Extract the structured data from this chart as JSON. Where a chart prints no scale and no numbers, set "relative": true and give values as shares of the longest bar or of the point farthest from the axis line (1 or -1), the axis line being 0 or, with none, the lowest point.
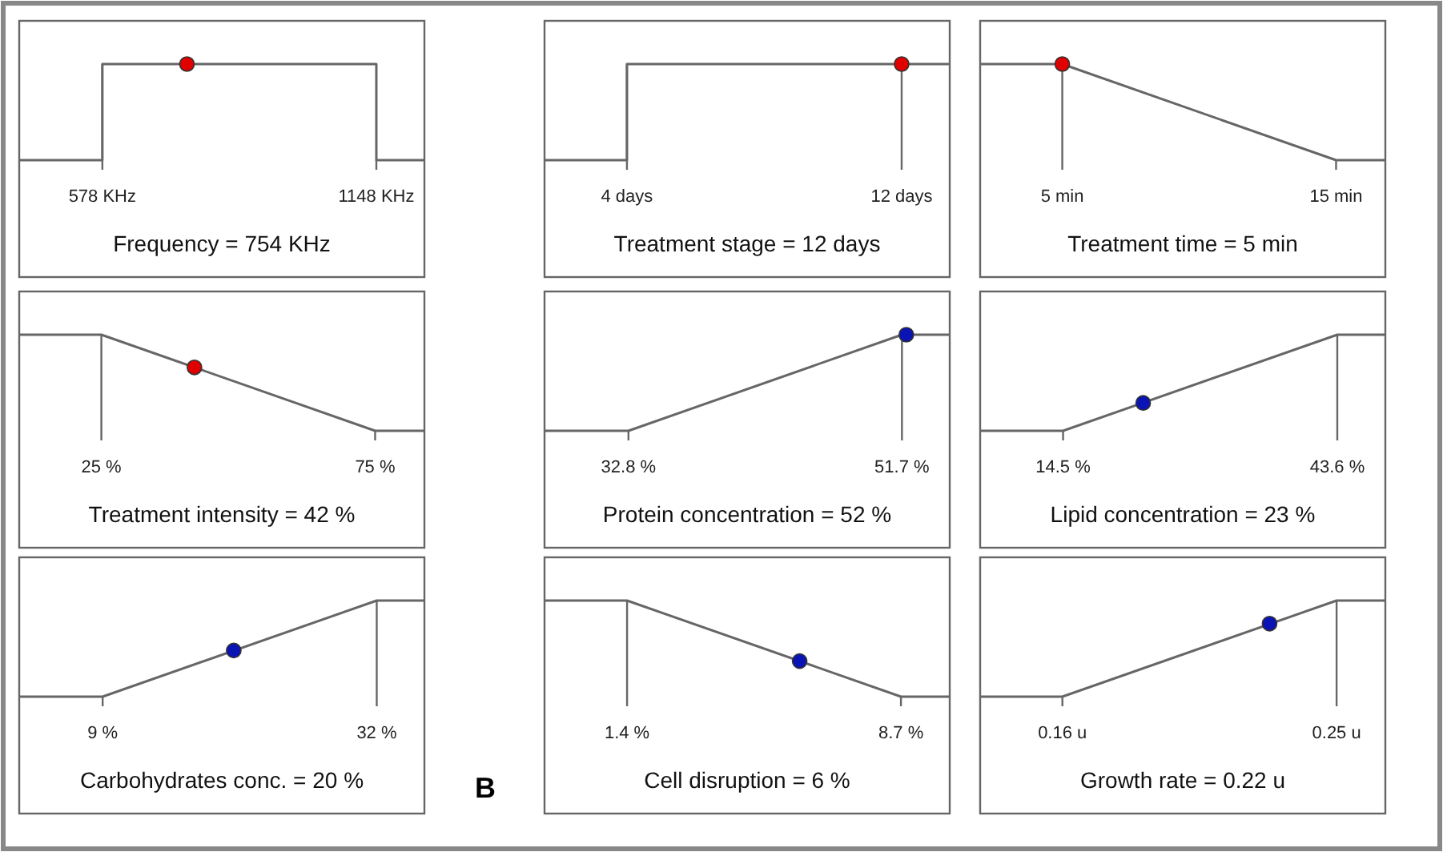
{
  "chart_data": [
    {
      "type": "line",
      "relative": true,
      "tick_labels": "x",
      "xlabel": "Frequency = 754 KHz",
      "xlim": [
        405,
        1248
      ],
      "xticks": [
        {
          "value": 578,
          "label": "578 KHz"
        },
        {
          "value": 1148,
          "label": "1148 KHz"
        }
      ],
      "series": [
        {
          "marker": "none",
          "color": "#666666",
          "x": [
            405,
            578,
            578,
            1148,
            1148,
            1248
          ],
          "values": [
            0,
            0,
            1,
            1,
            0,
            0
          ]
        },
        {
          "type": "scatter",
          "marker": "circle",
          "color": "#e00000",
          "x": [
            754
          ],
          "values": [
            1
          ]
        }
      ]
    },
    {
      "type": "line",
      "relative": true,
      "tick_labels": "x",
      "xlabel": "Treatment stage = 12 days",
      "xlim": [
        1.6,
        13.4
      ],
      "xticks": [
        {
          "value": 4,
          "label": "4 days"
        },
        {
          "value": 12,
          "label": "12 days"
        }
      ],
      "series": [
        {
          "marker": "none",
          "color": "#666666",
          "x": [
            1.6,
            4,
            4,
            12,
            13.4
          ],
          "values": [
            0,
            0,
            1,
            1,
            1
          ]
        },
        {
          "type": "scatter",
          "marker": "circle",
          "color": "#e00000",
          "x": [
            12
          ],
          "values": [
            1
          ]
        }
      ]
    },
    {
      "type": "line",
      "relative": true,
      "tick_labels": "x",
      "xlabel": "Treatment time = 5 min",
      "xlim": [
        2,
        16.8
      ],
      "xticks": [
        {
          "value": 5,
          "label": "5 min"
        },
        {
          "value": 15,
          "label": "15 min"
        }
      ],
      "series": [
        {
          "marker": "none",
          "color": "#666666",
          "x": [
            2,
            5,
            15,
            16.8
          ],
          "values": [
            1,
            1,
            0,
            0
          ]
        },
        {
          "type": "scatter",
          "marker": "circle",
          "color": "#e00000",
          "x": [
            5
          ],
          "values": [
            1
          ]
        }
      ]
    },
    {
      "type": "line",
      "relative": true,
      "tick_labels": "x",
      "xlabel": "Treatment intensity = 42 %",
      "xlim": [
        10,
        84
      ],
      "xticks": [
        {
          "value": 25,
          "label": "25 %"
        },
        {
          "value": 75,
          "label": "75 %"
        }
      ],
      "series": [
        {
          "marker": "none",
          "color": "#666666",
          "x": [
            10,
            25,
            75,
            84
          ],
          "values": [
            1,
            1,
            0,
            0
          ]
        },
        {
          "type": "scatter",
          "marker": "circle",
          "color": "#e00000",
          "x": [
            42
          ],
          "values": [
            0.66
          ]
        }
      ]
    },
    {
      "type": "line",
      "relative": true,
      "tick_labels": "x",
      "xlabel": "Protein concentration = 52 %",
      "xlim": [
        27,
        55
      ],
      "xticks": [
        {
          "value": 32.8,
          "label": "32.8 %"
        },
        {
          "value": 51.7,
          "label": "51.7 %"
        }
      ],
      "series": [
        {
          "marker": "none",
          "color": "#666666",
          "x": [
            27,
            32.8,
            51.7,
            55
          ],
          "values": [
            0,
            0,
            1,
            1
          ]
        },
        {
          "type": "scatter",
          "marker": "circle",
          "color": "#0a14b4",
          "x": [
            52
          ],
          "values": [
            1
          ]
        }
      ]
    },
    {
      "type": "line",
      "relative": true,
      "tick_labels": "x",
      "xlabel": "Lipid concentration = 23 %",
      "xlim": [
        5.7,
        48.7
      ],
      "xticks": [
        {
          "value": 14.5,
          "label": "14.5 %"
        },
        {
          "value": 43.6,
          "label": "43.6 %"
        }
      ],
      "series": [
        {
          "marker": "none",
          "color": "#666666",
          "x": [
            5.7,
            14.5,
            43.6,
            48.7
          ],
          "values": [
            0,
            0,
            1,
            1
          ]
        },
        {
          "type": "scatter",
          "marker": "circle",
          "color": "#0a14b4",
          "x": [
            23
          ],
          "values": [
            0.29
          ]
        }
      ]
    },
    {
      "type": "line",
      "relative": true,
      "tick_labels": "x",
      "xlabel": "Carbohydrates conc. = 20 %",
      "annotations": [
        "B"
      ],
      "xlim": [
        2,
        36
      ],
      "xticks": [
        {
          "value": 9,
          "label": "9 %"
        },
        {
          "value": 32,
          "label": "32 %"
        }
      ],
      "series": [
        {
          "marker": "none",
          "color": "#666666",
          "x": [
            2,
            9,
            32,
            36
          ],
          "values": [
            0,
            0,
            1,
            1
          ]
        },
        {
          "type": "scatter",
          "marker": "circle",
          "color": "#0a14b4",
          "x": [
            20
          ],
          "values": [
            0.48
          ]
        }
      ]
    },
    {
      "type": "line",
      "relative": true,
      "tick_labels": "x",
      "xlabel": "Cell disruption = 6 %",
      "xlim": [
        -0.8,
        10
      ],
      "xticks": [
        {
          "value": 1.4,
          "label": "1.4 %"
        },
        {
          "value": 8.7,
          "label": "8.7 %"
        }
      ],
      "series": [
        {
          "marker": "none",
          "color": "#666666",
          "x": [
            -0.8,
            1.4,
            8.7,
            10
          ],
          "values": [
            1,
            1,
            0,
            0
          ]
        },
        {
          "type": "scatter",
          "marker": "circle",
          "color": "#0a14b4",
          "x": [
            6
          ],
          "values": [
            0.37
          ]
        }
      ]
    },
    {
      "type": "line",
      "relative": true,
      "tick_labels": "x",
      "xlabel": "Growth rate = 0.22 u",
      "xlim": [
        0.133,
        0.266
      ],
      "xticks": [
        {
          "value": 0.16,
          "label": "0.16 u"
        },
        {
          "value": 0.25,
          "label": "0.25 u"
        }
      ],
      "series": [
        {
          "marker": "none",
          "color": "#666666",
          "x": [
            0.133,
            0.16,
            0.25,
            0.266
          ],
          "values": [
            0,
            0,
            1,
            1
          ]
        },
        {
          "type": "scatter",
          "marker": "circle",
          "color": "#0a14b4",
          "x": [
            0.228
          ],
          "values": [
            0.76
          ]
        }
      ]
    }
  ]
}
